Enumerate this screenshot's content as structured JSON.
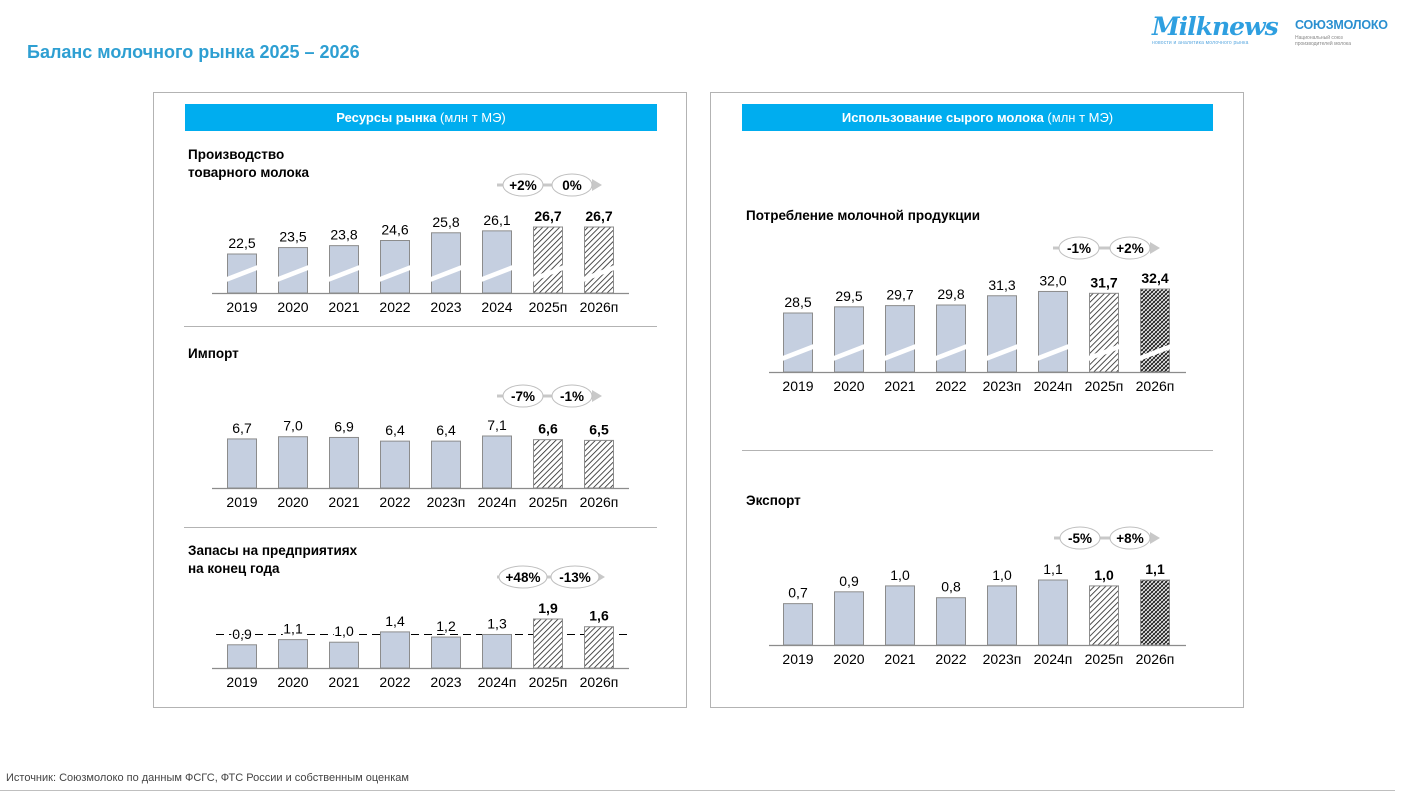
{
  "page": {
    "title": "Баланс молочного рынка 2025 – 2026",
    "source": "Источник: Союзмолоко по данным ФСГС, ФТС России и собственным оценкам"
  },
  "logos": {
    "milknews": {
      "name": "Milknews",
      "tagline": "новости и аналитика молочного рынка"
    },
    "soyuzmoloko": {
      "name": "СОЮЗМОЛОКО",
      "tagline": "Национальный союз производителей молока"
    }
  },
  "colors": {
    "accent": "#00adef",
    "title": "#2e9fd2",
    "bar_fill": "#c5cfe0",
    "bar_stroke": "#8c8c8c",
    "axis": "#8c8c8c",
    "bubble_stroke": "#bfbfbf"
  },
  "panels": {
    "left": {
      "banner_bold": "Ресурсы рынка",
      "banner_unit": " (млн т МЭ)"
    },
    "right": {
      "banner_bold": "Использование сырого молока",
      "banner_unit": " (млн т МЭ)"
    }
  },
  "chart_data": [
    {
      "id": "production",
      "type": "bar",
      "title": "Производство товарного молока",
      "title_lines": [
        "Производство",
        "товарного молока"
      ],
      "unit": "млн т МЭ",
      "broken_axis": true,
      "categories": [
        "2019",
        "2020",
        "2021",
        "2022",
        "2023",
        "2024",
        "2025п",
        "2026п"
      ],
      "values": [
        22.5,
        23.5,
        23.8,
        24.6,
        25.8,
        26.1,
        26.7,
        26.7
      ],
      "labels": [
        "22,5",
        "23,5",
        "23,8",
        "24,6",
        "25,8",
        "26,1",
        "26,7",
        "26,7"
      ],
      "forecast": [
        false,
        false,
        false,
        false,
        false,
        false,
        true,
        true
      ],
      "growth": [
        "+2%",
        "0%"
      ]
    },
    {
      "id": "import",
      "type": "bar",
      "title": "Импорт",
      "title_lines": [
        "Импорт"
      ],
      "unit": "млн т МЭ",
      "broken_axis": false,
      "categories": [
        "2019",
        "2020",
        "2021",
        "2022",
        "2023п",
        "2024п",
        "2025п",
        "2026п"
      ],
      "values": [
        6.7,
        7.0,
        6.9,
        6.4,
        6.4,
        7.1,
        6.6,
        6.5
      ],
      "labels": [
        "6,7",
        "7,0",
        "6,9",
        "6,4",
        "6,4",
        "7,1",
        "6,6",
        "6,5"
      ],
      "forecast": [
        false,
        false,
        false,
        false,
        false,
        false,
        true,
        true
      ],
      "growth": [
        "-7%",
        "-1%"
      ]
    },
    {
      "id": "stocks",
      "type": "bar",
      "title": "Запасы на предприятиях на конец года",
      "title_lines": [
        "Запасы на предприятиях",
        "на конец года"
      ],
      "unit": "млн т МЭ",
      "broken_axis": false,
      "reference_line": 1.3,
      "categories": [
        "2019",
        "2020",
        "2021",
        "2022",
        "2023",
        "2024п",
        "2025п",
        "2026п"
      ],
      "values": [
        0.9,
        1.1,
        1.0,
        1.4,
        1.2,
        1.3,
        1.9,
        1.6
      ],
      "labels": [
        "0,9",
        "1,1",
        "1,0",
        "1,4",
        "1,2",
        "1,3",
        "1,9",
        "1,6"
      ],
      "forecast": [
        false,
        false,
        false,
        false,
        false,
        false,
        true,
        true
      ],
      "growth": [
        "+48%",
        "-13%"
      ]
    },
    {
      "id": "consumption",
      "type": "bar",
      "title": "Потребление молочной продукции",
      "title_lines": [
        "Потребление молочной продукции"
      ],
      "unit": "млн т МЭ",
      "broken_axis": true,
      "categories": [
        "2019",
        "2020",
        "2021",
        "2022",
        "2023п",
        "2024п",
        "2025п",
        "2026п"
      ],
      "values": [
        28.5,
        29.5,
        29.7,
        29.8,
        31.3,
        32.0,
        31.7,
        32.4
      ],
      "labels": [
        "28,5",
        "29,5",
        "29,7",
        "29,8",
        "31,3",
        "32,0",
        "31,7",
        "32,4"
      ],
      "forecast": [
        false,
        false,
        false,
        false,
        false,
        false,
        true,
        true
      ],
      "growth": [
        "-1%",
        "+2%"
      ]
    },
    {
      "id": "export",
      "type": "bar",
      "title": "Экспорт",
      "title_lines": [
        "Экспорт"
      ],
      "unit": "млн т МЭ",
      "broken_axis": false,
      "categories": [
        "2019",
        "2020",
        "2021",
        "2022",
        "2023п",
        "2024п",
        "2025п",
        "2026п"
      ],
      "values": [
        0.7,
        0.9,
        1.0,
        0.8,
        1.0,
        1.1,
        1.0,
        1.1
      ],
      "labels": [
        "0,7",
        "0,9",
        "1,0",
        "0,8",
        "1,0",
        "1,1",
        "1,0",
        "1,1"
      ],
      "forecast": [
        false,
        false,
        false,
        false,
        false,
        false,
        true,
        true
      ],
      "growth": [
        "-5%",
        "+8%"
      ]
    }
  ]
}
